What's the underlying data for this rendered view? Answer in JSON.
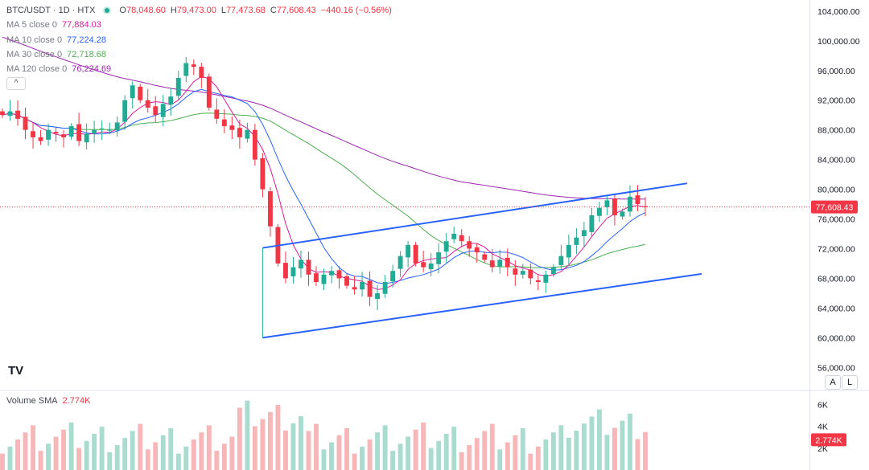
{
  "header": {
    "symbol": "BTC/USDT · 1D · HTX",
    "open_label": "O",
    "open": "78,048.60",
    "high_label": "H",
    "high": "79,473.00",
    "low_label": "L",
    "low": "77,473.68",
    "close_label": "C",
    "close": "77,608.43",
    "change": "−440.16 (−0.56%)"
  },
  "moving_averages": [
    {
      "label": "MA 5 close 0",
      "value": "77,884.03",
      "color": "#d81b9f"
    },
    {
      "label": "MA 10 close 0",
      "value": "77,224.28",
      "color": "#2962ff"
    },
    {
      "label": "MA 30 close 0",
      "value": "72,718.68",
      "color": "#4caf50"
    },
    {
      "label": "MA 120 close 0",
      "value": "76,224.69",
      "color": "#9c27b0"
    }
  ],
  "collapse_icon": "chevron-up-icon",
  "volume": {
    "label": "Volume SMA",
    "value": "2.774K"
  },
  "logo": "TV",
  "buttons": {
    "auto": "A",
    "log": "L"
  },
  "colors": {
    "up": "#22ab94",
    "down": "#f23645",
    "trendline": "#2962ff",
    "price_badge": "#f23645",
    "volume_up": "#a9dccf",
    "volume_down": "#f7b6b8"
  },
  "chart_data": {
    "type": "candlestick",
    "title": "BTC/USDT · 1D · HTX",
    "xlabel": "",
    "ylabel": "",
    "y_ticks": [
      "104,000.00",
      "100,000.00",
      "96,000.00",
      "92,000.00",
      "88,000.00",
      "84,000.00",
      "80,000.00",
      "76,000.00",
      "72,000.00",
      "68,000.00",
      "64,000.00",
      "60,000.00",
      "56,000.00"
    ],
    "ylim": [
      53000,
      105500
    ],
    "last_price": "77,608.43",
    "volume_ticks": [
      "6K",
      "4K",
      "2K"
    ],
    "volume_last": "2.774K",
    "approx_close_path": [
      90000,
      90500,
      89500,
      88000,
      87000,
      86500,
      88000,
      87500,
      87000,
      88500,
      86500,
      87500,
      88000,
      88200,
      88000,
      89000,
      92000,
      94000,
      92000,
      91000,
      90000,
      91500,
      92500,
      95000,
      97000,
      96500,
      95000,
      91000,
      89500,
      88500,
      88000,
      87000,
      88000,
      84000,
      80000,
      75000,
      70000,
      68000,
      69500,
      70500,
      68500,
      67500,
      68500,
      69000,
      68000,
      67000,
      66500,
      67500,
      65500,
      66000,
      67500,
      69000,
      71000,
      72500,
      70000,
      69500,
      70000,
      71500,
      73000,
      74000,
      73000,
      72000,
      71500,
      70500,
      69500,
      70500,
      69500,
      68500,
      69000,
      68000,
      67500,
      68500,
      69500,
      71000,
      72500,
      73500,
      74500,
      76500,
      77500,
      78500,
      76500,
      77000,
      79000,
      78000,
      77608.43
    ],
    "overlays": [
      "MA 5",
      "MA 10",
      "MA 30",
      "MA 120",
      "upper channel line",
      "lower channel line"
    ]
  }
}
